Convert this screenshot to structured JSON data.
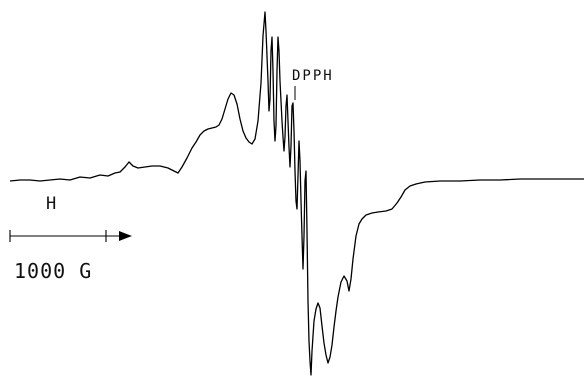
{
  "chart_data": {
    "type": "line",
    "title": "",
    "xlabel": "",
    "ylabel": "",
    "grid": false,
    "legend": "none",
    "x_axis_label_symbol": "H",
    "scale_bar": {
      "length": 1000,
      "label": "1000 G"
    },
    "annotations": [
      {
        "text": "DPPH",
        "x": 283
      }
    ],
    "xlim": [
      0,
      584
    ],
    "ylim": [
      -194,
      180
    ],
    "series": [
      {
        "points": [
          [
            10,
            0
          ],
          [
            20,
            1
          ],
          [
            30,
            1
          ],
          [
            40,
            0
          ],
          [
            50,
            1
          ],
          [
            60,
            2
          ],
          [
            70,
            1
          ],
          [
            80,
            4
          ],
          [
            90,
            3
          ],
          [
            100,
            6
          ],
          [
            108,
            5
          ],
          [
            115,
            8
          ],
          [
            120,
            9
          ],
          [
            125,
            14
          ],
          [
            129,
            19
          ],
          [
            133,
            15
          ],
          [
            138,
            13
          ],
          [
            145,
            14
          ],
          [
            152,
            15
          ],
          [
            160,
            15
          ],
          [
            168,
            13
          ],
          [
            174,
            10
          ],
          [
            178,
            8
          ],
          [
            182,
            14
          ],
          [
            187,
            23
          ],
          [
            192,
            33
          ],
          [
            196,
            39
          ],
          [
            200,
            46
          ],
          [
            204,
            50
          ],
          [
            208,
            52
          ],
          [
            212,
            53
          ],
          [
            216,
            54
          ],
          [
            219,
            56
          ],
          [
            222,
            62
          ],
          [
            225,
            72
          ],
          [
            228,
            82
          ],
          [
            231,
            88
          ],
          [
            234,
            86
          ],
          [
            237,
            77
          ],
          [
            240,
            62
          ],
          [
            243,
            50
          ],
          [
            246,
            43
          ],
          [
            249,
            39
          ],
          [
            252,
            37
          ],
          [
            255,
            42
          ],
          [
            258,
            60
          ],
          [
            261,
            98
          ],
          [
            263,
            145
          ],
          [
            265,
            169
          ],
          [
            266,
            150
          ],
          [
            268,
            100
          ],
          [
            269,
            70
          ],
          [
            270,
            82
          ],
          [
            271,
            130
          ],
          [
            272,
            144
          ],
          [
            273,
            110
          ],
          [
            274,
            60
          ],
          [
            275,
            40
          ],
          [
            276,
            55
          ],
          [
            277,
            110
          ],
          [
            278,
            144
          ],
          [
            279,
            130
          ],
          [
            280,
            100
          ],
          [
            282,
            60
          ],
          [
            283,
            44
          ],
          [
            284,
            30
          ],
          [
            285,
            44
          ],
          [
            286,
            75
          ],
          [
            287,
            86
          ],
          [
            288,
            60
          ],
          [
            289,
            34
          ],
          [
            290,
            14
          ],
          [
            291,
            35
          ],
          [
            292,
            75
          ],
          [
            293,
            78
          ],
          [
            294,
            50
          ],
          [
            295,
            10
          ],
          [
            296,
            -20
          ],
          [
            297,
            -28
          ],
          [
            298,
            5
          ],
          [
            299,
            40
          ],
          [
            300,
            20
          ],
          [
            301,
            -20
          ],
          [
            302,
            -55
          ],
          [
            303,
            -88
          ],
          [
            304,
            -55
          ],
          [
            305,
            0
          ],
          [
            306,
            10
          ],
          [
            307,
            -50
          ],
          [
            308,
            -120
          ],
          [
            309,
            -160
          ],
          [
            310,
            -180
          ],
          [
            311,
            -194
          ],
          [
            312,
            -170
          ],
          [
            313,
            -155
          ],
          [
            314,
            -140
          ],
          [
            316,
            -128
          ],
          [
            318,
            -122
          ],
          [
            320,
            -127
          ],
          [
            322,
            -145
          ],
          [
            324,
            -162
          ],
          [
            326,
            -174
          ],
          [
            328,
            -182
          ],
          [
            330,
            -176
          ],
          [
            332,
            -164
          ],
          [
            334,
            -146
          ],
          [
            336,
            -130
          ],
          [
            338,
            -116
          ],
          [
            341,
            -101
          ],
          [
            344,
            -95
          ],
          [
            347,
            -100
          ],
          [
            349,
            -110
          ],
          [
            351,
            -98
          ],
          [
            353,
            -78
          ],
          [
            356,
            -55
          ],
          [
            359,
            -43
          ],
          [
            362,
            -38
          ],
          [
            366,
            -34
          ],
          [
            372,
            -32
          ],
          [
            378,
            -31
          ],
          [
            386,
            -30
          ],
          [
            392,
            -28
          ],
          [
            397,
            -22
          ],
          [
            401,
            -16
          ],
          [
            405,
            -9
          ],
          [
            410,
            -5
          ],
          [
            416,
            -3
          ],
          [
            425,
            -1
          ],
          [
            440,
            0
          ],
          [
            460,
            0
          ],
          [
            480,
            1
          ],
          [
            500,
            1
          ],
          [
            520,
            2
          ],
          [
            540,
            2
          ],
          [
            560,
            2
          ],
          [
            575,
            2
          ],
          [
            584,
            2
          ]
        ]
      }
    ]
  }
}
